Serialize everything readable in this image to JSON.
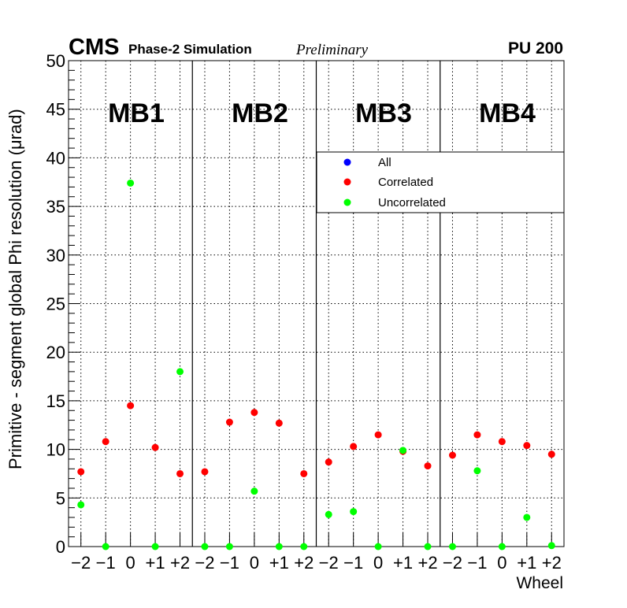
{
  "header": {
    "experiment": "CMS",
    "simulation": "Phase-2 Simulation",
    "status": "Preliminary",
    "pileup": "PU 200"
  },
  "chart_data": {
    "type": "scatter",
    "ylabel": "Primitive - segment global Phi resolution (μrad)",
    "xlabel": "Wheel",
    "ylim": [
      0,
      50
    ],
    "yticks": [
      "0",
      "5",
      "10",
      "15",
      "20",
      "25",
      "30",
      "35",
      "40",
      "45",
      "50"
    ],
    "grid": true,
    "legend_position": "top-right",
    "wheel_labels": [
      "−2",
      "−1",
      "0",
      "+1",
      "+2"
    ],
    "stations": [
      "MB1",
      "MB2",
      "MB3",
      "MB4"
    ],
    "series": [
      {
        "name": "All",
        "color": "#0000ff",
        "values": [
          [
            null,
            null,
            null,
            null,
            null
          ],
          [
            null,
            null,
            null,
            null,
            null
          ],
          [
            null,
            null,
            null,
            null,
            null
          ],
          [
            null,
            null,
            null,
            null,
            null
          ]
        ]
      },
      {
        "name": "Correlated",
        "color": "#ff0000",
        "values": [
          [
            7.7,
            10.8,
            14.5,
            10.2,
            7.5
          ],
          [
            7.7,
            12.8,
            13.8,
            12.7,
            7.5
          ],
          [
            8.7,
            10.3,
            11.5,
            9.8,
            8.3
          ],
          [
            9.4,
            11.5,
            10.8,
            10.4,
            9.5
          ]
        ]
      },
      {
        "name": "Uncorrelated",
        "color": "#00ff00",
        "values": [
          [
            4.3,
            0.0,
            37.4,
            0.0,
            18.0
          ],
          [
            0.0,
            0.0,
            5.7,
            0.0,
            0.0
          ],
          [
            3.3,
            3.6,
            0.0,
            9.9,
            0.0
          ],
          [
            0.0,
            7.8,
            0.0,
            3.0,
            0.1
          ]
        ]
      }
    ]
  }
}
